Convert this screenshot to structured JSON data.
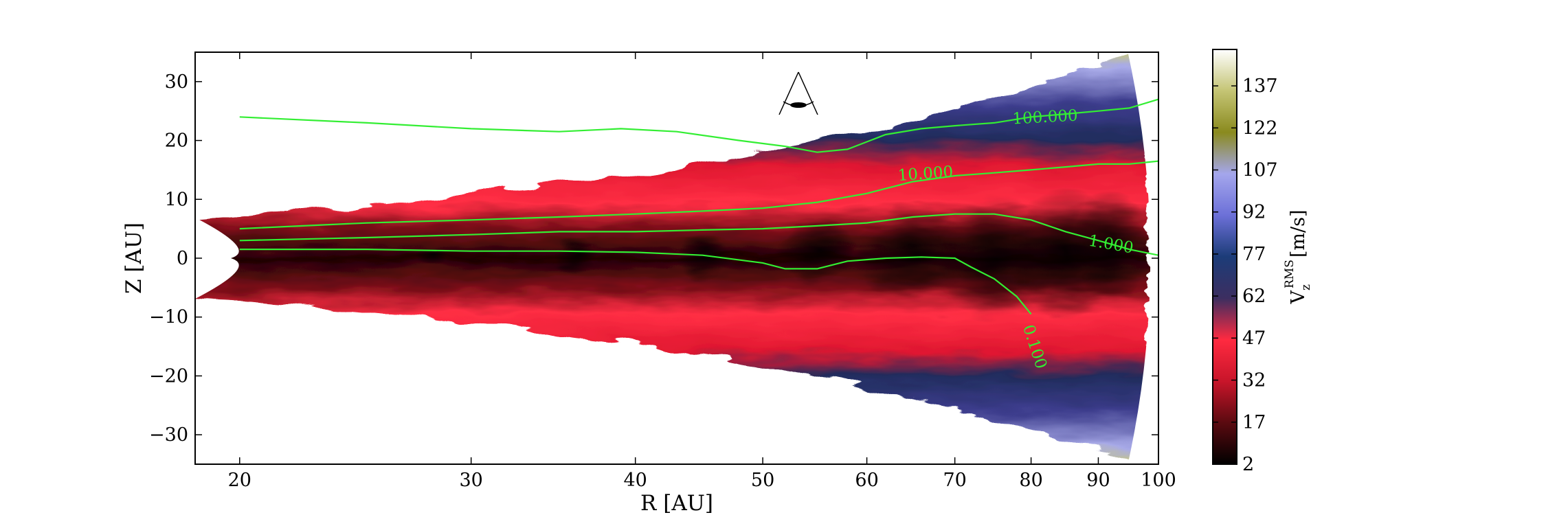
{
  "chart_data": {
    "type": "heatmap",
    "title": "",
    "xlabel": "R [AU]",
    "ylabel": "Z [AU]",
    "xscale": "log",
    "xlim": [
      18.5,
      100
    ],
    "ylim": [
      -35,
      35
    ],
    "xticks": [
      20,
      30,
      40,
      50,
      60,
      70,
      80,
      90,
      100
    ],
    "xtick_labels": [
      "20",
      "30",
      "40",
      "50",
      "60",
      "70",
      "80",
      "90",
      "100"
    ],
    "yticks": [
      30,
      20,
      10,
      0,
      -10,
      -20,
      -30
    ],
    "ytick_labels": [
      "30",
      "20",
      "10",
      "0",
      "−10",
      "−20",
      "−30"
    ],
    "colorbar": {
      "label_main": "V",
      "label_sub": "z",
      "label_sup": "RMS",
      "label_unit": "[m/s]",
      "range": [
        2,
        150
      ],
      "ticks": [
        137,
        122,
        107,
        92,
        77,
        62,
        47,
        32,
        17,
        2
      ],
      "tick_labels": [
        "137",
        "122",
        "107",
        "92",
        "77",
        "62",
        "47",
        "32",
        "17",
        "2"
      ],
      "colors": [
        "#000000",
        "#5a0a10",
        "#c8152a",
        "#ff2a40",
        "#3c2e60",
        "#1c3c78",
        "#6c70d8",
        "#a4a6ec",
        "#8a8a1e",
        "#c4c474",
        "#ffffff"
      ]
    },
    "disk_region": {
      "r_inner": 18.5,
      "r_outer": 98,
      "description": "turbulent velocity field, dark midplane, red layer, blue surface, yellow rim"
    },
    "contours": [
      {
        "label": "100.000",
        "r": [
          20,
          25,
          30,
          35,
          39,
          43,
          48,
          52,
          55,
          58,
          62,
          66,
          70,
          75,
          80,
          85,
          90,
          95,
          100
        ],
        "z": [
          24,
          23,
          22,
          21.5,
          22,
          21.5,
          20,
          19,
          18,
          18.5,
          21,
          22,
          22.5,
          23,
          24,
          24.5,
          25,
          25.5,
          27
        ]
      },
      {
        "label": "10.000",
        "r": [
          20,
          25,
          30,
          35,
          40,
          45,
          50,
          55,
          60,
          65,
          70,
          75,
          80,
          85,
          90,
          95,
          100
        ],
        "z": [
          5,
          6,
          6.5,
          7,
          7.5,
          8,
          8.5,
          9.5,
          11,
          13,
          14,
          14.5,
          15,
          15.5,
          16,
          16,
          16.5
        ]
      },
      {
        "label": "1.000",
        "r": [
          20,
          25,
          30,
          35,
          40,
          45,
          50,
          55,
          60,
          65,
          70,
          75,
          80,
          85,
          90,
          95,
          100
        ],
        "z": [
          3,
          3.5,
          4,
          4.5,
          4.5,
          4.8,
          5,
          5.5,
          6,
          7,
          7.5,
          7.5,
          6.5,
          4.5,
          3,
          1.5,
          0.5
        ]
      },
      {
        "label": "0.100",
        "r": [
          20,
          25,
          30,
          35,
          40,
          45,
          50,
          52,
          55,
          58,
          62,
          66,
          70,
          72,
          75,
          78,
          80
        ],
        "z": [
          1.5,
          1.5,
          1.2,
          1.2,
          1,
          0.5,
          -0.8,
          -1.8,
          -1.8,
          -0.5,
          0,
          0.2,
          0,
          -1.5,
          -3.5,
          -6.5,
          -9.5
        ]
      }
    ]
  },
  "inset_icon": "observer-eye-viewing-angle-icon"
}
